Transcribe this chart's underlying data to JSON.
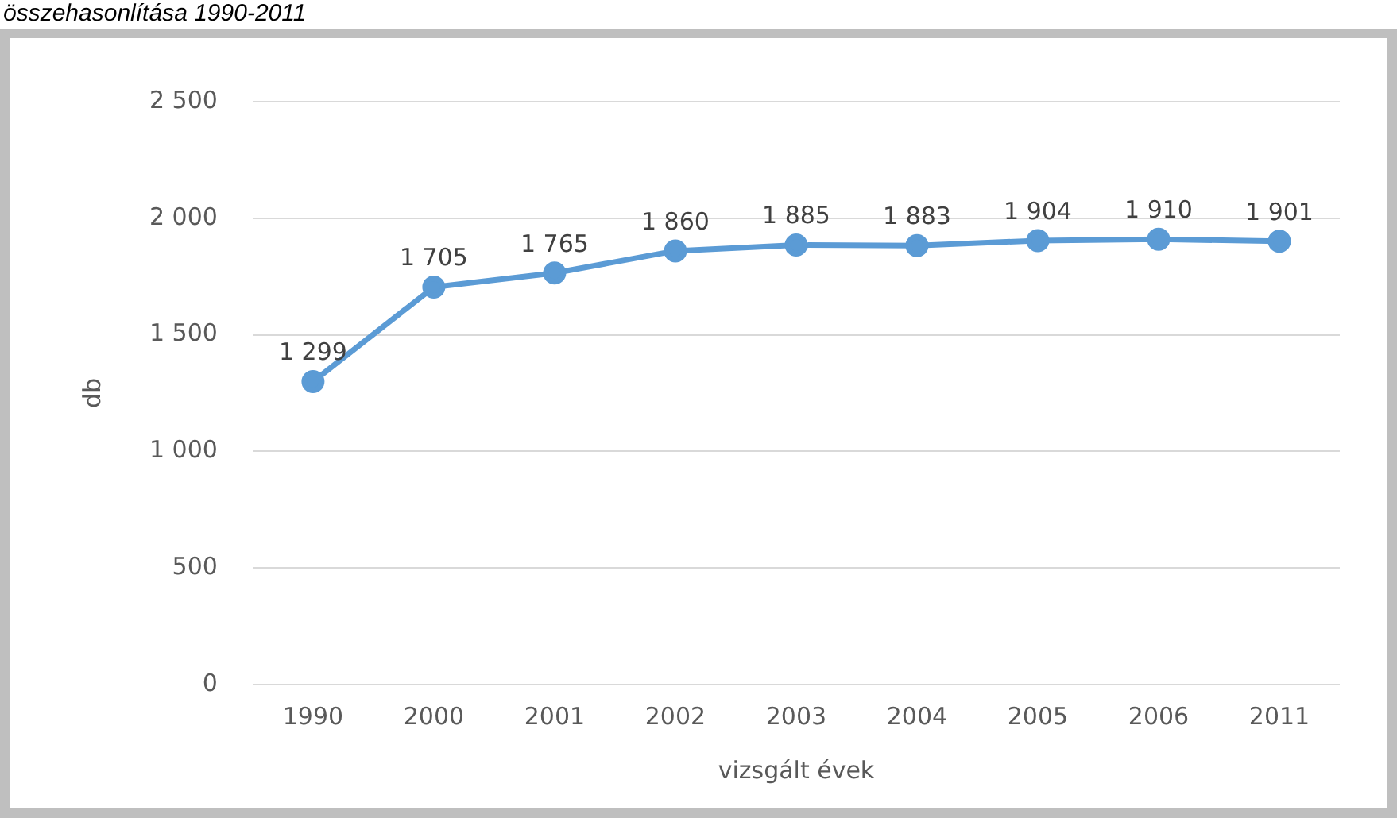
{
  "chart_data": {
    "type": "line",
    "title": "összehasonlítása 1990-2011",
    "xlabel": "vizsgált évek",
    "ylabel": "db",
    "categories": [
      "1990",
      "2000",
      "2001",
      "2002",
      "2003",
      "2004",
      "2005",
      "2006",
      "2011"
    ],
    "values": [
      1299,
      1705,
      1765,
      1860,
      1885,
      1883,
      1904,
      1910,
      1901
    ],
    "color": "#5b9bd5",
    "ylim": [
      0,
      2500
    ],
    "yticks": [
      {
        "value": 0,
        "label": "0"
      },
      {
        "value": 500,
        "label": "500"
      },
      {
        "value": 1000,
        "label": "1 000"
      },
      {
        "value": 1500,
        "label": "1 500"
      },
      {
        "value": 2000,
        "label": "2 000"
      },
      {
        "value": 2500,
        "label": "2 500"
      }
    ],
    "value_labels": [
      "1 299",
      "1 705",
      "1 765",
      "1 860",
      "1 885",
      "1 883",
      "1 904",
      "1 910",
      "1 901"
    ],
    "grid": "y",
    "legend": false,
    "marker": "circle",
    "line_style": "solid"
  }
}
